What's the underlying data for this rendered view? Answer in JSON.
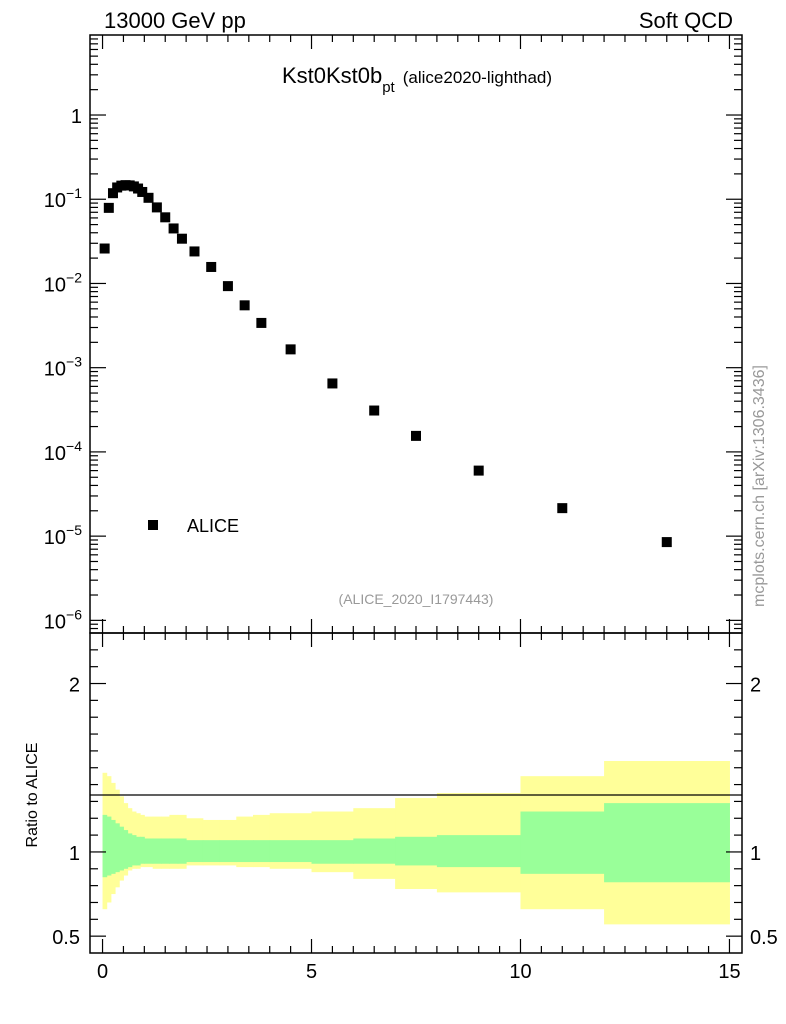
{
  "header": {
    "left": "13000 GeV pp",
    "right": "Soft QCD"
  },
  "watermark": "mcplots.cern.ch [arXiv:1306.3436]",
  "chart_data": [
    {
      "type": "scatter",
      "panel": "main",
      "title": {
        "main": "Kst0Kst0b",
        "sub": "pt",
        "suffix": "(alice2020-lighthad)"
      },
      "analysis_id": "(ALICE_2020_I1797443)",
      "yscale": "log",
      "xlim": [
        -0.3,
        15.3
      ],
      "ylim_exp": [
        -6.15,
        0.95
      ],
      "y_tick_labels": [
        {
          "exp": 0,
          "base": "1",
          "sup": ""
        },
        {
          "exp": -1,
          "base": "10",
          "sup": "−1"
        },
        {
          "exp": -2,
          "base": "10",
          "sup": "−2"
        },
        {
          "exp": -3,
          "base": "10",
          "sup": "−3"
        },
        {
          "exp": -4,
          "base": "10",
          "sup": "−4"
        },
        {
          "exp": -5,
          "base": "10",
          "sup": "−5"
        },
        {
          "exp": -6,
          "base": "10",
          "sup": "−6"
        }
      ],
      "series": [
        {
          "name": "ALICE",
          "marker": "square",
          "color": "#000000",
          "x": [
            0.05,
            0.15,
            0.25,
            0.35,
            0.45,
            0.55,
            0.65,
            0.75,
            0.85,
            0.95,
            1.1,
            1.3,
            1.5,
            1.7,
            1.9,
            2.2,
            2.6,
            3.0,
            3.4,
            3.8,
            4.5,
            5.5,
            6.5,
            7.5,
            9.0,
            11.0,
            13.5
          ],
          "y": [
            0.026,
            0.079,
            0.118,
            0.138,
            0.145,
            0.147,
            0.146,
            0.142,
            0.134,
            0.122,
            0.104,
            0.08,
            0.061,
            0.045,
            0.034,
            0.024,
            0.0157,
            0.0093,
            0.0055,
            0.0034,
            0.00165,
            0.00065,
            0.00031,
            0.000155,
            6e-05,
            2.15e-05,
            8.5e-06
          ]
        }
      ]
    },
    {
      "type": "area",
      "panel": "ratio",
      "ylabel": "Ratio to ALICE",
      "xlim": [
        -0.3,
        15.3
      ],
      "ylim": [
        0.4,
        2.3
      ],
      "y_ticks": [
        {
          "value": 0.5,
          "label": "0.5"
        },
        {
          "value": 1,
          "label": "1"
        },
        {
          "value": 2,
          "label": "2"
        }
      ],
      "x_ticks": [
        {
          "value": 0,
          "label": "0"
        },
        {
          "value": 5,
          "label": "5"
        },
        {
          "value": 10,
          "label": "10"
        },
        {
          "value": 15,
          "label": "15"
        }
      ],
      "bins": [
        {
          "x0": 0.0,
          "x1": 0.1,
          "stat_lo": 0.85,
          "stat_hi": 1.22,
          "tot_lo": 0.66,
          "tot_hi": 1.47
        },
        {
          "x0": 0.1,
          "x1": 0.2,
          "stat_lo": 0.86,
          "stat_hi": 1.21,
          "tot_lo": 0.7,
          "tot_hi": 1.45
        },
        {
          "x0": 0.2,
          "x1": 0.3,
          "stat_lo": 0.87,
          "stat_hi": 1.19,
          "tot_lo": 0.75,
          "tot_hi": 1.41
        },
        {
          "x0": 0.3,
          "x1": 0.4,
          "stat_lo": 0.88,
          "stat_hi": 1.17,
          "tot_lo": 0.79,
          "tot_hi": 1.37
        },
        {
          "x0": 0.4,
          "x1": 0.5,
          "stat_lo": 0.89,
          "stat_hi": 1.15,
          "tot_lo": 0.83,
          "tot_hi": 1.33
        },
        {
          "x0": 0.5,
          "x1": 0.6,
          "stat_lo": 0.9,
          "stat_hi": 1.13,
          "tot_lo": 0.86,
          "tot_hi": 1.29
        },
        {
          "x0": 0.6,
          "x1": 0.7,
          "stat_lo": 0.91,
          "stat_hi": 1.11,
          "tot_lo": 0.89,
          "tot_hi": 1.26
        },
        {
          "x0": 0.7,
          "x1": 0.8,
          "stat_lo": 0.92,
          "stat_hi": 1.1,
          "tot_lo": 0.9,
          "tot_hi": 1.24
        },
        {
          "x0": 0.8,
          "x1": 0.9,
          "stat_lo": 0.92,
          "stat_hi": 1.09,
          "tot_lo": 0.9,
          "tot_hi": 1.23
        },
        {
          "x0": 0.9,
          "x1": 1.0,
          "stat_lo": 0.93,
          "stat_hi": 1.09,
          "tot_lo": 0.91,
          "tot_hi": 1.22
        },
        {
          "x0": 1.0,
          "x1": 1.2,
          "stat_lo": 0.93,
          "stat_hi": 1.08,
          "tot_lo": 0.91,
          "tot_hi": 1.21
        },
        {
          "x0": 1.2,
          "x1": 1.4,
          "stat_lo": 0.93,
          "stat_hi": 1.08,
          "tot_lo": 0.9,
          "tot_hi": 1.21
        },
        {
          "x0": 1.4,
          "x1": 1.6,
          "stat_lo": 0.93,
          "stat_hi": 1.08,
          "tot_lo": 0.9,
          "tot_hi": 1.21
        },
        {
          "x0": 1.6,
          "x1": 1.8,
          "stat_lo": 0.93,
          "stat_hi": 1.08,
          "tot_lo": 0.9,
          "tot_hi": 1.22
        },
        {
          "x0": 1.8,
          "x1": 2.0,
          "stat_lo": 0.93,
          "stat_hi": 1.08,
          "tot_lo": 0.9,
          "tot_hi": 1.22
        },
        {
          "x0": 2.0,
          "x1": 2.4,
          "stat_lo": 0.94,
          "stat_hi": 1.07,
          "tot_lo": 0.92,
          "tot_hi": 1.2
        },
        {
          "x0": 2.4,
          "x1": 2.8,
          "stat_lo": 0.94,
          "stat_hi": 1.07,
          "tot_lo": 0.92,
          "tot_hi": 1.19
        },
        {
          "x0": 2.8,
          "x1": 3.2,
          "stat_lo": 0.94,
          "stat_hi": 1.07,
          "tot_lo": 0.92,
          "tot_hi": 1.19
        },
        {
          "x0": 3.2,
          "x1": 3.6,
          "stat_lo": 0.94,
          "stat_hi": 1.07,
          "tot_lo": 0.91,
          "tot_hi": 1.21
        },
        {
          "x0": 3.6,
          "x1": 4.0,
          "stat_lo": 0.94,
          "stat_hi": 1.07,
          "tot_lo": 0.91,
          "tot_hi": 1.22
        },
        {
          "x0": 4.0,
          "x1": 5.0,
          "stat_lo": 0.94,
          "stat_hi": 1.07,
          "tot_lo": 0.9,
          "tot_hi": 1.23
        },
        {
          "x0": 5.0,
          "x1": 6.0,
          "stat_lo": 0.93,
          "stat_hi": 1.07,
          "tot_lo": 0.88,
          "tot_hi": 1.24
        },
        {
          "x0": 6.0,
          "x1": 7.0,
          "stat_lo": 0.93,
          "stat_hi": 1.08,
          "tot_lo": 0.84,
          "tot_hi": 1.26
        },
        {
          "x0": 7.0,
          "x1": 8.0,
          "stat_lo": 0.92,
          "stat_hi": 1.09,
          "tot_lo": 0.78,
          "tot_hi": 1.32
        },
        {
          "x0": 8.0,
          "x1": 10.0,
          "stat_lo": 0.91,
          "stat_hi": 1.1,
          "tot_lo": 0.76,
          "tot_hi": 1.35
        },
        {
          "x0": 10.0,
          "x1": 12.0,
          "stat_lo": 0.87,
          "stat_hi": 1.24,
          "tot_lo": 0.66,
          "tot_hi": 1.45
        },
        {
          "x0": 12.0,
          "x1": 15.0,
          "stat_lo": 0.82,
          "stat_hi": 1.29,
          "tot_lo": 0.57,
          "tot_hi": 1.54
        }
      ],
      "colors": {
        "stat": "#99ff99",
        "total": "#ffff99",
        "reference_line": "#000000"
      }
    }
  ]
}
